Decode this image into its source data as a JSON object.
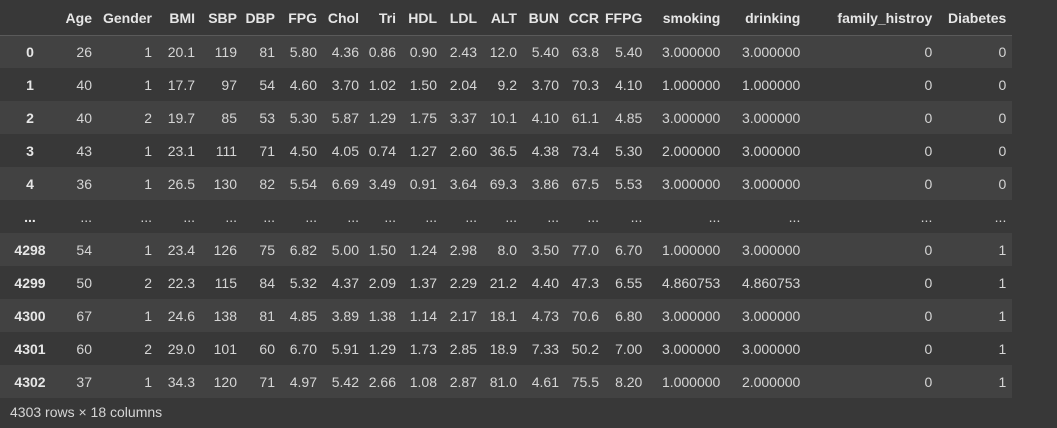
{
  "table": {
    "columns": [
      "",
      "Age",
      "Gender",
      "BMI",
      "SBP",
      "DBP",
      "FPG",
      "Chol",
      "Tri",
      "HDL",
      "LDL",
      "ALT",
      "BUN",
      "CCR",
      "FFPG",
      "smoking",
      "drinking",
      "family_histroy",
      "Diabetes"
    ],
    "rows": [
      [
        "0",
        "26",
        "1",
        "20.1",
        "119",
        "81",
        "5.80",
        "4.36",
        "0.86",
        "0.90",
        "2.43",
        "12.0",
        "5.40",
        "63.8",
        "5.40",
        "3.000000",
        "3.000000",
        "0",
        "0"
      ],
      [
        "1",
        "40",
        "1",
        "17.7",
        "97",
        "54",
        "4.60",
        "3.70",
        "1.02",
        "1.50",
        "2.04",
        "9.2",
        "3.70",
        "70.3",
        "4.10",
        "1.000000",
        "1.000000",
        "0",
        "0"
      ],
      [
        "2",
        "40",
        "2",
        "19.7",
        "85",
        "53",
        "5.30",
        "5.87",
        "1.29",
        "1.75",
        "3.37",
        "10.1",
        "4.10",
        "61.1",
        "4.85",
        "3.000000",
        "3.000000",
        "0",
        "0"
      ],
      [
        "3",
        "43",
        "1",
        "23.1",
        "111",
        "71",
        "4.50",
        "4.05",
        "0.74",
        "1.27",
        "2.60",
        "36.5",
        "4.38",
        "73.4",
        "5.30",
        "2.000000",
        "3.000000",
        "0",
        "0"
      ],
      [
        "4",
        "36",
        "1",
        "26.5",
        "130",
        "82",
        "5.54",
        "6.69",
        "3.49",
        "0.91",
        "3.64",
        "69.3",
        "3.86",
        "67.5",
        "5.53",
        "3.000000",
        "3.000000",
        "0",
        "0"
      ],
      [
        "...",
        "...",
        "...",
        "...",
        "...",
        "...",
        "...",
        "...",
        "...",
        "...",
        "...",
        "...",
        "...",
        "...",
        "...",
        "...",
        "...",
        "...",
        "..."
      ],
      [
        "4298",
        "54",
        "1",
        "23.4",
        "126",
        "75",
        "6.82",
        "5.00",
        "1.50",
        "1.24",
        "2.98",
        "8.0",
        "3.50",
        "77.0",
        "6.70",
        "1.000000",
        "3.000000",
        "0",
        "1"
      ],
      [
        "4299",
        "50",
        "2",
        "22.3",
        "115",
        "84",
        "5.32",
        "4.37",
        "2.09",
        "1.37",
        "2.29",
        "21.2",
        "4.40",
        "47.3",
        "6.55",
        "4.860753",
        "4.860753",
        "0",
        "1"
      ],
      [
        "4300",
        "67",
        "1",
        "24.6",
        "138",
        "81",
        "4.85",
        "3.89",
        "1.38",
        "1.14",
        "2.17",
        "18.1",
        "4.73",
        "70.6",
        "6.80",
        "3.000000",
        "3.000000",
        "0",
        "1"
      ],
      [
        "4301",
        "60",
        "2",
        "29.0",
        "101",
        "60",
        "6.70",
        "5.91",
        "1.29",
        "1.73",
        "2.85",
        "18.9",
        "7.33",
        "50.2",
        "7.00",
        "3.000000",
        "3.000000",
        "0",
        "1"
      ],
      [
        "4302",
        "37",
        "1",
        "34.3",
        "120",
        "71",
        "4.97",
        "5.42",
        "2.66",
        "1.08",
        "2.87",
        "81.0",
        "4.61",
        "75.5",
        "8.20",
        "1.000000",
        "2.000000",
        "0",
        "1"
      ]
    ]
  },
  "footer": {
    "summary": "4303 rows × 18 columns"
  }
}
